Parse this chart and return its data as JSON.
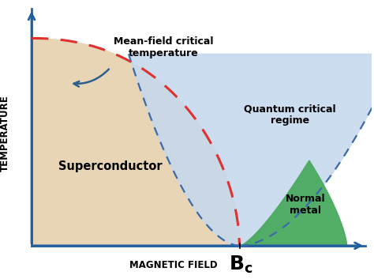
{
  "background_color": "#ffffff",
  "superconductor_color": "#e8d5b5",
  "quantum_critical_color": "#c5d8ee",
  "normal_metal_color": "#4aaa60",
  "red_dashed_color": "#e03030",
  "blue_dashed_color": "#3a6aaa",
  "arrow_color": "#2c5f8a",
  "axis_color": "#2060a0",
  "label_magnetic_field": "MAGNETIC FIELD",
  "label_temperature": "TEMPERATURE",
  "label_bc": "$\\mathbf{B_c}$",
  "label_superconductor": "Superconductor",
  "label_normal_metal": "Normal\nmetal",
  "label_quantum": "Quantum critical\nregime",
  "label_meanfield": "Mean-field critical\ntemperature",
  "xlim": [
    0,
    10
  ],
  "ylim": [
    0,
    10
  ],
  "bc_x": 6.6
}
